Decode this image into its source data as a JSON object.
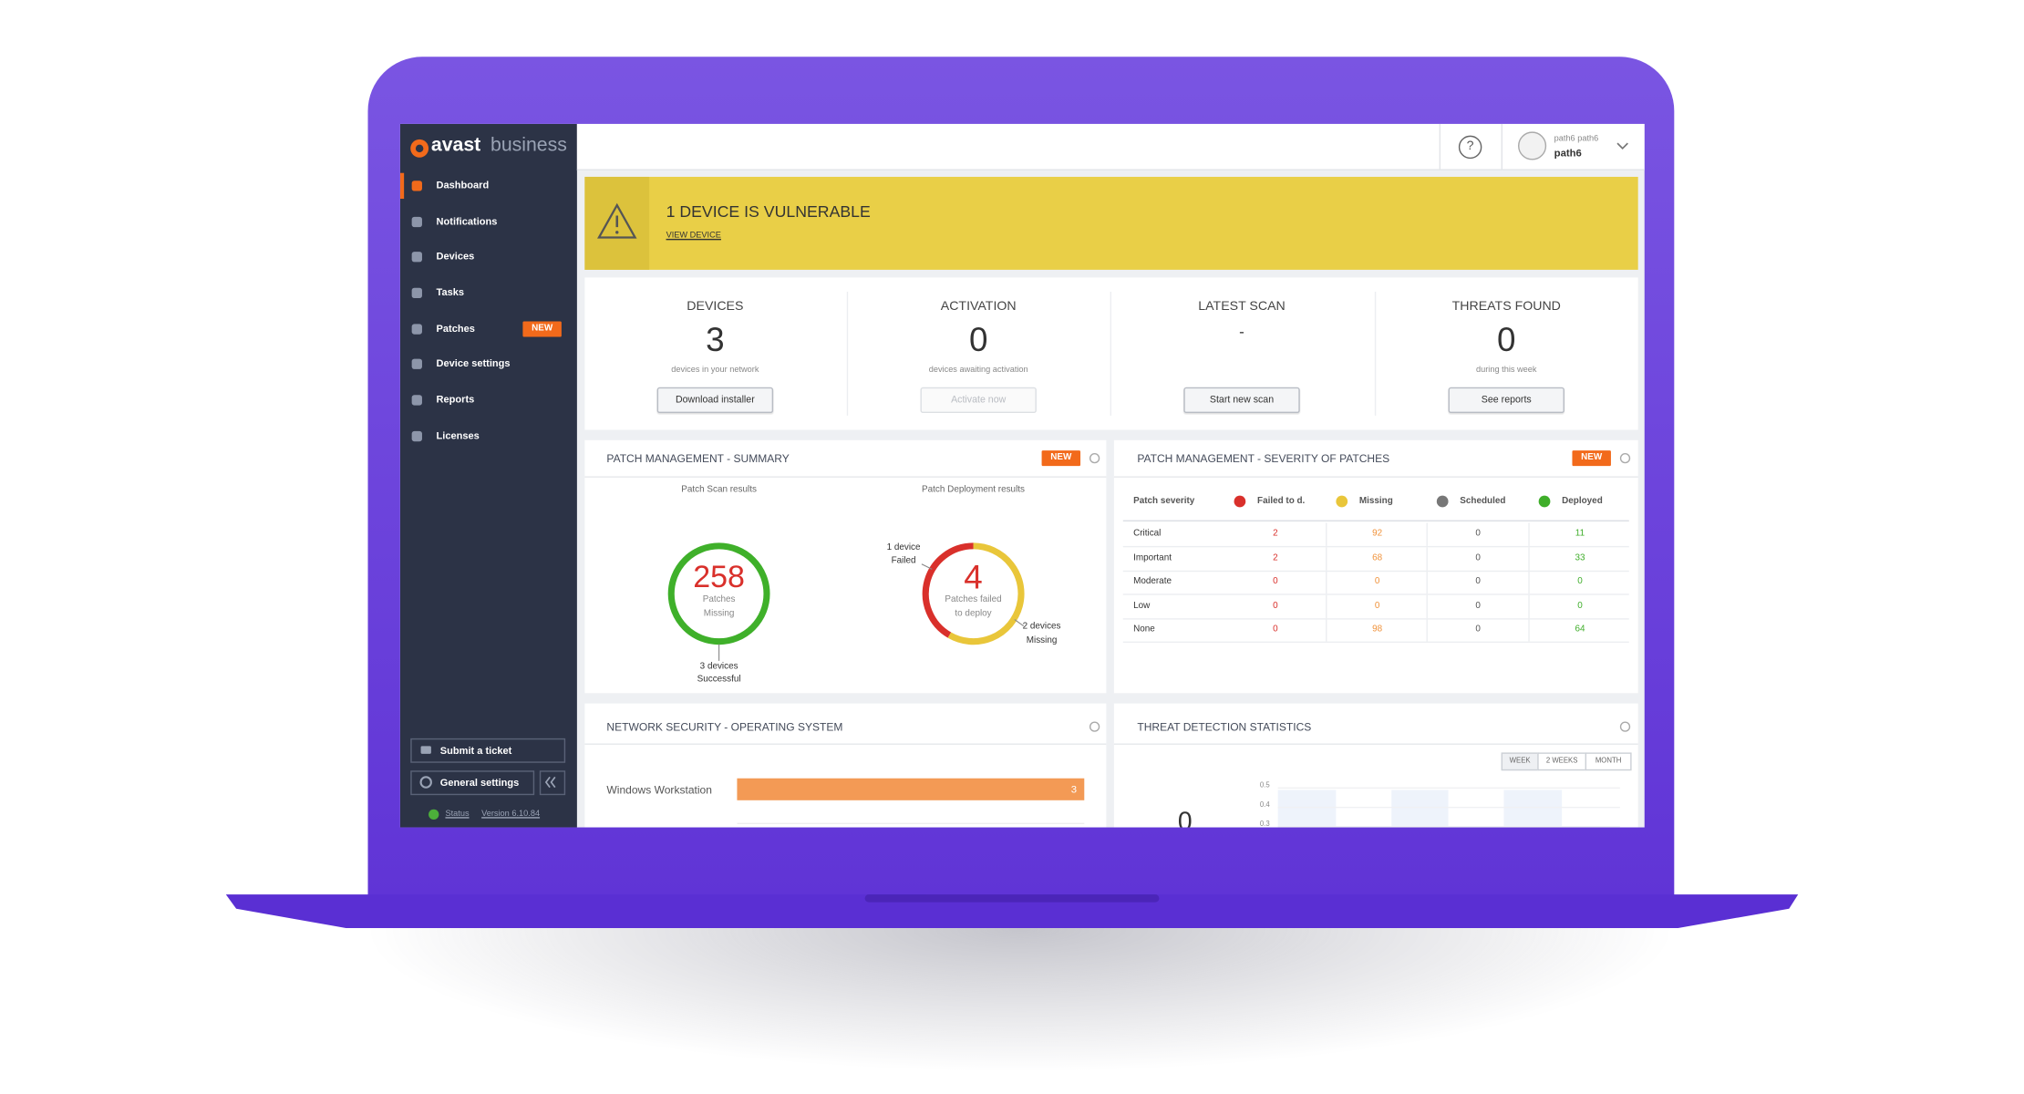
{
  "sidebar": {
    "brand_a": "avast",
    "brand_b": "business",
    "nav": [
      "Dashboard",
      "Notifications",
      "Devices",
      "Tasks",
      "Patches",
      "Device settings",
      "Reports",
      "Licenses"
    ],
    "patches_badge": "NEW",
    "submit_ticket": "Submit a ticket",
    "general_settings": "General settings",
    "status": "Status",
    "version": "Version 6.10.84"
  },
  "topbar": {
    "help": "?",
    "user_line1": "path6 path6",
    "user_line2": "path6"
  },
  "alert": {
    "title": "1 DEVICE IS VULNERABLE",
    "link": "VIEW DEVICE"
  },
  "stats": [
    {
      "label": "DEVICES",
      "value": 3,
      "caption": "devices in your network",
      "button": "Download installer"
    },
    {
      "label": "ACTIVATION",
      "value": 0,
      "caption": "devices awaiting activation",
      "button": "Activate now"
    },
    {
      "label": "LATEST SCAN",
      "value": "-",
      "button": "Start new scan"
    },
    {
      "label": "THREATS FOUND",
      "value": 0,
      "caption": "during this week",
      "button": "See reports"
    }
  ],
  "patch_summary": {
    "title": "PATCH MANAGEMENT - SUMMARY",
    "badge": "NEW",
    "scan": {
      "heading": "Patch Scan results",
      "value": 258,
      "caption": [
        "Patches",
        "Missing"
      ],
      "note": [
        "3 devices",
        "Successful"
      ]
    },
    "deployment": {
      "heading": "Patch Deployment results",
      "value": 4,
      "caption": [
        "Patches failed",
        "to deploy"
      ],
      "failed_note": [
        "1 device",
        "Failed"
      ],
      "missing_note": [
        "2 devices",
        "Missing"
      ]
    }
  },
  "severity": {
    "title": "PATCH MANAGEMENT - SEVERITY OF PATCHES",
    "badge": "NEW",
    "legend_label": "Patch severity",
    "columns": [
      "Failed to d.",
      "Missing",
      "Scheduled",
      "Deployed"
    ],
    "rows": [
      [
        "Critical",
        2,
        92,
        0,
        11
      ],
      [
        "Important",
        2,
        68,
        0,
        33
      ],
      [
        "Moderate",
        0,
        0,
        0,
        0
      ],
      [
        "Low",
        0,
        0,
        0,
        0
      ],
      [
        "None",
        0,
        98,
        0,
        64
      ]
    ]
  },
  "network": {
    "title": "NETWORK SECURITY - OPERATING SYSTEM",
    "rows": [
      {
        "label": "Windows Workstation",
        "value": 3
      }
    ]
  },
  "threats": {
    "title": "THREAT DETECTION STATISTICS",
    "ranges": [
      "WEEK",
      "2 WEEKS",
      "MONTH"
    ],
    "axis_labels": [
      "0.5",
      "0.4",
      "0.3"
    ],
    "total": 0
  }
}
